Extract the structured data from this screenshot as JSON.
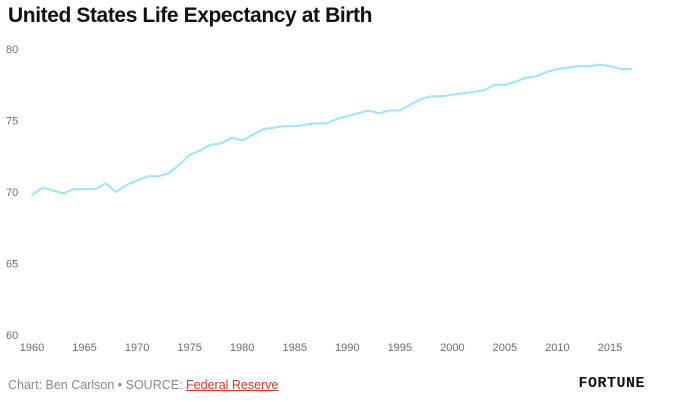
{
  "chart_data": {
    "type": "line",
    "title": "United States Life Expectancy at Birth",
    "xlabel": "",
    "ylabel": "",
    "xlim": [
      1960,
      2017
    ],
    "ylim": [
      60,
      80
    ],
    "x_ticks": [
      1960,
      1965,
      1970,
      1975,
      1980,
      1985,
      1990,
      1995,
      2000,
      2005,
      2010,
      2015
    ],
    "y_ticks": [
      60,
      65,
      70,
      75,
      80
    ],
    "grid": false,
    "line_color": "#9ee6f7",
    "series": [
      {
        "x": [
          1960,
          1961,
          1962,
          1963,
          1964,
          1965,
          1966,
          1967,
          1968,
          1969,
          1970,
          1971,
          1972,
          1973,
          1974,
          1975,
          1976,
          1977,
          1978,
          1979,
          1980,
          1981,
          1982,
          1983,
          1984,
          1985,
          1986,
          1987,
          1988,
          1989,
          1990,
          1991,
          1992,
          1993,
          1994,
          1995,
          1996,
          1997,
          1998,
          1999,
          2000,
          2001,
          2002,
          2003,
          2004,
          2005,
          2006,
          2007,
          2008,
          2009,
          2010,
          2011,
          2012,
          2013,
          2014,
          2015,
          2016,
          2017
        ],
        "values": [
          69.8,
          70.3,
          70.1,
          69.9,
          70.2,
          70.2,
          70.2,
          70.6,
          70.0,
          70.5,
          70.8,
          71.1,
          71.1,
          71.3,
          71.9,
          72.6,
          72.9,
          73.3,
          73.4,
          73.8,
          73.6,
          74.0,
          74.4,
          74.5,
          74.6,
          74.6,
          74.7,
          74.8,
          74.8,
          75.1,
          75.3,
          75.5,
          75.7,
          75.5,
          75.7,
          75.7,
          76.1,
          76.5,
          76.7,
          76.7,
          76.8,
          76.9,
          77.0,
          77.1,
          77.5,
          77.5,
          77.7,
          78.0,
          78.1,
          78.4,
          78.6,
          78.7,
          78.8,
          78.8,
          78.9,
          78.8,
          78.6,
          78.6
        ]
      }
    ]
  },
  "footer": {
    "credit": "Chart: Ben Carlson • SOURCE: ",
    "source_link": "Federal Reserve"
  },
  "brand": "FORTUNE"
}
